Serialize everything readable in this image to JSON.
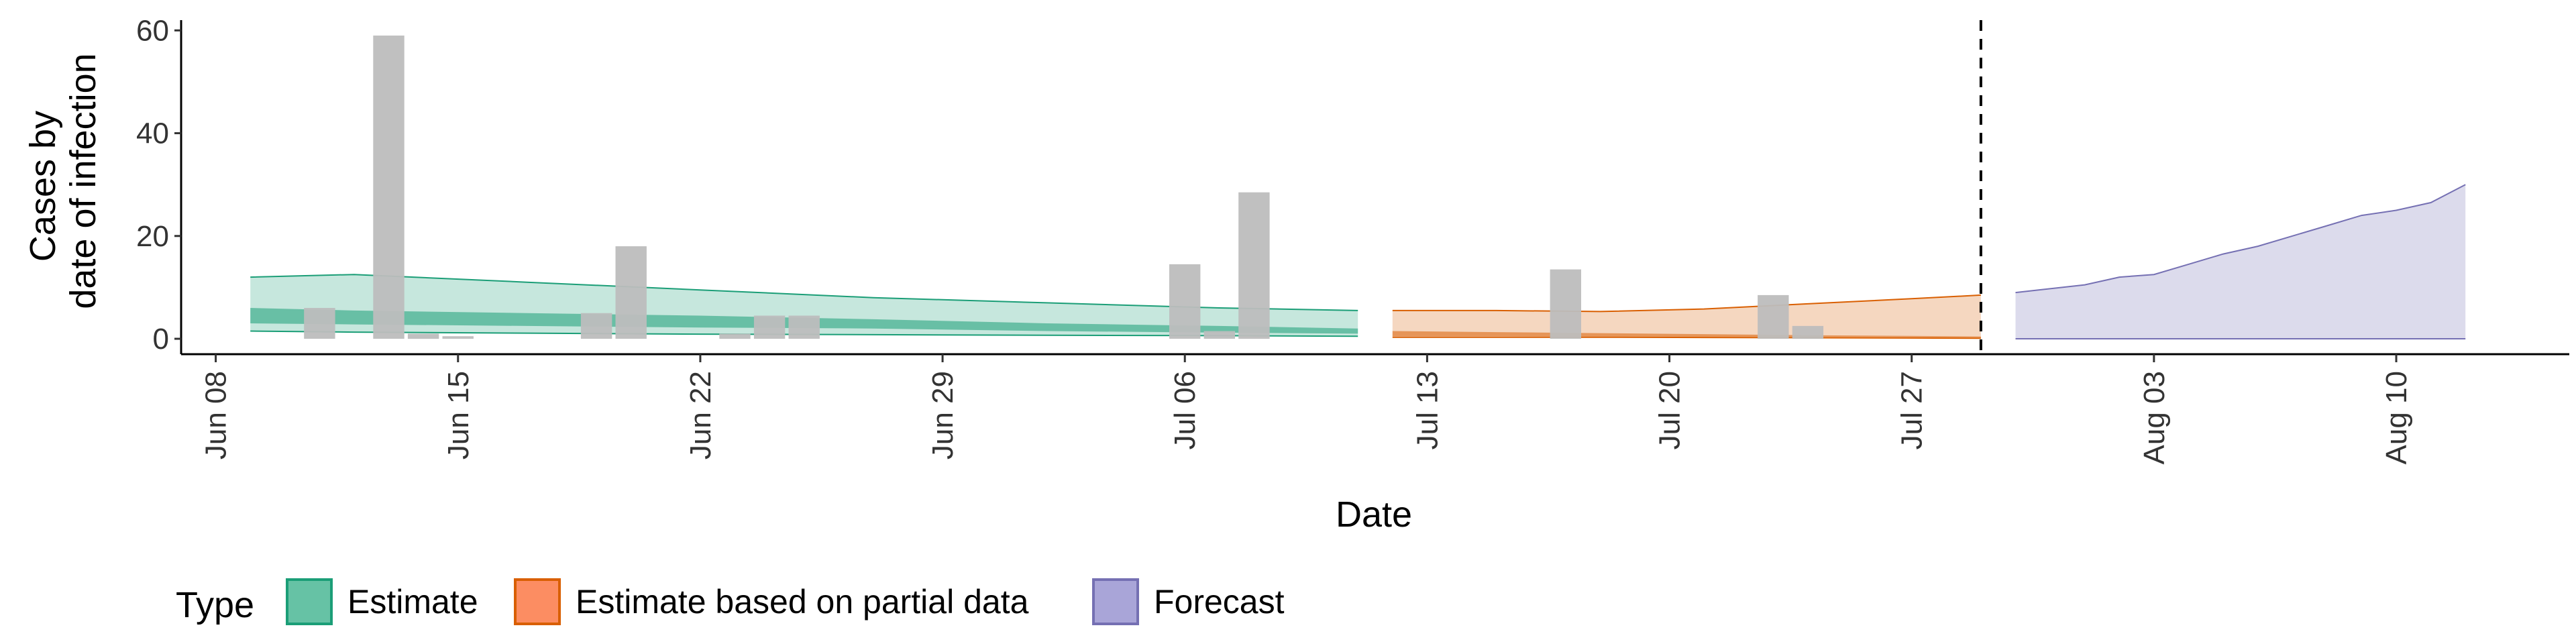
{
  "chart_data": {
    "type": "area",
    "xlabel": "Date",
    "ylabel_lines": [
      "Cases by",
      "date of infection"
    ],
    "xlim": [
      "2020-06-07",
      "2020-08-15"
    ],
    "ylim": [
      -3,
      62
    ],
    "y_ticks": [
      0,
      20,
      40,
      60
    ],
    "x_ticks": [
      {
        "date": "2020-06-08",
        "label": "Jun 08"
      },
      {
        "date": "2020-06-15",
        "label": "Jun 15"
      },
      {
        "date": "2020-06-22",
        "label": "Jun 22"
      },
      {
        "date": "2020-06-29",
        "label": "Jun 29"
      },
      {
        "date": "2020-07-06",
        "label": "Jul 06"
      },
      {
        "date": "2020-07-13",
        "label": "Jul 13"
      },
      {
        "date": "2020-07-20",
        "label": "Jul 20"
      },
      {
        "date": "2020-07-27",
        "label": "Jul 27"
      },
      {
        "date": "2020-08-03",
        "label": "Aug 03"
      },
      {
        "date": "2020-08-10",
        "label": "Aug 10"
      }
    ],
    "grid": false,
    "forecast_date": "2020-07-29",
    "reported_cases": [
      {
        "date": "2020-06-11",
        "value": 6
      },
      {
        "date": "2020-06-13",
        "value": 59
      },
      {
        "date": "2020-06-14",
        "value": 1
      },
      {
        "date": "2020-06-15",
        "value": 0.5
      },
      {
        "date": "2020-06-19",
        "value": 5
      },
      {
        "date": "2020-06-20",
        "value": 18
      },
      {
        "date": "2020-06-23",
        "value": 1
      },
      {
        "date": "2020-06-24",
        "value": 4.5
      },
      {
        "date": "2020-06-25",
        "value": 4.5
      },
      {
        "date": "2020-07-06",
        "value": 14.5
      },
      {
        "date": "2020-07-07",
        "value": 1.5
      },
      {
        "date": "2020-07-08",
        "value": 28.5
      },
      {
        "date": "2020-07-17",
        "value": 13.5
      },
      {
        "date": "2020-07-23",
        "value": 8.5
      },
      {
        "date": "2020-07-24",
        "value": 2.5
      }
    ],
    "series": [
      {
        "name": "Estimate",
        "color": "#1b9e77",
        "points": [
          {
            "date": "2020-06-09",
            "outer": [
              1.5,
              12
            ],
            "inner": [
              3,
              6
            ]
          },
          {
            "date": "2020-06-12",
            "outer": [
              1.3,
              12.5
            ],
            "inner": [
              2.8,
              5.5
            ]
          },
          {
            "date": "2020-06-17",
            "outer": [
              1.1,
              11
            ],
            "inner": [
              2.5,
              5
            ]
          },
          {
            "date": "2020-06-22",
            "outer": [
              0.9,
              9.5
            ],
            "inner": [
              2.2,
              4.5
            ]
          },
          {
            "date": "2020-06-27",
            "outer": [
              0.8,
              8
            ],
            "inner": [
              2,
              3.8
            ]
          },
          {
            "date": "2020-07-02",
            "outer": [
              0.7,
              7
            ],
            "inner": [
              1.5,
              3
            ]
          },
          {
            "date": "2020-07-07",
            "outer": [
              0.6,
              6
            ],
            "inner": [
              1.2,
              2.5
            ]
          },
          {
            "date": "2020-07-11",
            "outer": [
              0.5,
              5.5
            ],
            "inner": [
              1,
              2
            ]
          }
        ]
      },
      {
        "name": "Estimate based on partial data",
        "color": "#d95f02",
        "points": [
          {
            "date": "2020-07-12",
            "outer": [
              0.3,
              5.5
            ],
            "inner": [
              0.5,
              1.5
            ]
          },
          {
            "date": "2020-07-15",
            "outer": [
              0.3,
              5.5
            ],
            "inner": [
              0.5,
              1.3
            ]
          },
          {
            "date": "2020-07-18",
            "outer": [
              0.3,
              5.3
            ],
            "inner": [
              0.45,
              1.1
            ]
          },
          {
            "date": "2020-07-21",
            "outer": [
              0.25,
              5.8
            ],
            "inner": [
              0.4,
              0.9
            ]
          },
          {
            "date": "2020-07-24",
            "outer": [
              0.2,
              6.8
            ],
            "inner": [
              0.35,
              0.7
            ]
          },
          {
            "date": "2020-07-27",
            "outer": [
              0.15,
              7.8
            ],
            "inner": [
              0.3,
              0.55
            ]
          },
          {
            "date": "2020-07-29",
            "outer": [
              0.1,
              8.5
            ],
            "inner": [
              0.25,
              0.45
            ]
          }
        ]
      },
      {
        "name": "Forecast",
        "color": "#7570b3",
        "points": [
          {
            "date": "2020-07-30",
            "outer": [
              0,
              9
            ]
          },
          {
            "date": "2020-08-01",
            "outer": [
              0,
              10.5
            ]
          },
          {
            "date": "2020-08-02",
            "outer": [
              0,
              12
            ]
          },
          {
            "date": "2020-08-03",
            "outer": [
              0,
              12.5
            ]
          },
          {
            "date": "2020-08-04",
            "outer": [
              0,
              14.5
            ]
          },
          {
            "date": "2020-08-05",
            "outer": [
              0,
              16.5
            ]
          },
          {
            "date": "2020-08-06",
            "outer": [
              0,
              18
            ]
          },
          {
            "date": "2020-08-07",
            "outer": [
              0,
              20
            ]
          },
          {
            "date": "2020-08-08",
            "outer": [
              0,
              22
            ]
          },
          {
            "date": "2020-08-09",
            "outer": [
              0,
              24
            ]
          },
          {
            "date": "2020-08-10",
            "outer": [
              0,
              25
            ]
          },
          {
            "date": "2020-08-11",
            "outer": [
              0,
              26.5
            ]
          },
          {
            "date": "2020-08-12",
            "outer": [
              0,
              30
            ]
          }
        ]
      }
    ],
    "bar_color": "#bdbdbd",
    "legend": {
      "title": "Type",
      "position": "bottom",
      "entries": [
        {
          "label": "Estimate",
          "fill": "#66c2a5",
          "stroke": "#1b9e77"
        },
        {
          "label": "Estimate based on partial data",
          "fill": "#fc8d62",
          "stroke": "#d95f02"
        },
        {
          "label": "Forecast",
          "fill": "#a9a5d8",
          "stroke": "#7570b3"
        }
      ]
    }
  }
}
